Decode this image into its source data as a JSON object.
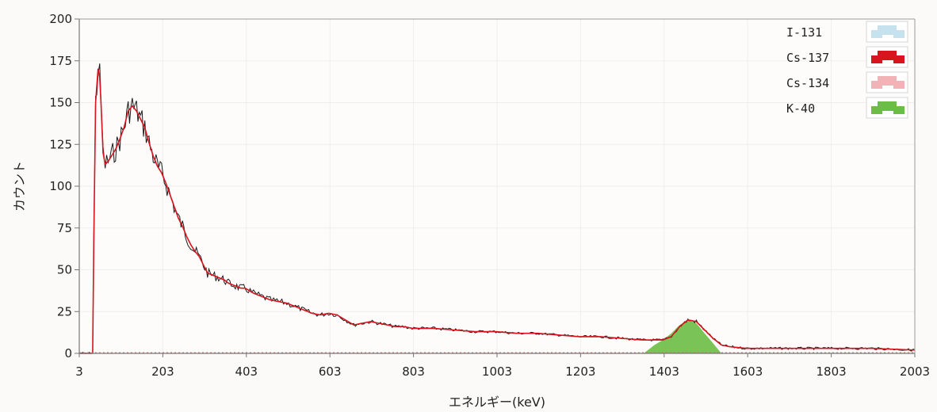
{
  "chart_data": {
    "type": "line",
    "title": "",
    "xlabel": "エネルギー(keV)",
    "ylabel": "カウント",
    "xlim": [
      3,
      2003
    ],
    "ylim": [
      0,
      200
    ],
    "x_ticks": [
      3,
      203,
      403,
      603,
      803,
      1003,
      1203,
      1403,
      1603,
      1803,
      2003
    ],
    "y_ticks": [
      0,
      25,
      50,
      75,
      100,
      125,
      150,
      175,
      200
    ],
    "grid": true,
    "legend_position": "top-right",
    "series": [
      {
        "name": "I-131",
        "color": "#c6e2ee",
        "values": []
      },
      {
        "name": "Cs-137",
        "color": "#d8141e",
        "x": [
          3,
          35,
          38,
          42,
          48,
          52,
          55,
          60,
          65,
          72,
          80,
          90,
          100,
          110,
          120,
          130,
          140,
          150,
          160,
          170,
          180,
          190,
          200,
          210,
          220,
          230,
          240,
          250,
          260,
          270,
          280,
          290,
          300,
          310,
          320,
          330,
          340,
          350,
          360,
          370,
          380,
          390,
          400,
          420,
          440,
          460,
          480,
          500,
          520,
          540,
          560,
          580,
          600,
          620,
          640,
          660,
          680,
          700,
          720,
          740,
          760,
          780,
          800,
          850,
          900,
          950,
          1000,
          1050,
          1100,
          1150,
          1200,
          1250,
          1300,
          1350,
          1400,
          1420,
          1440,
          1460,
          1480,
          1500,
          1520,
          1540,
          1560,
          1600,
          1700,
          1800,
          1900,
          2003
        ],
        "values": [
          0,
          0,
          70,
          150,
          170,
          165,
          150,
          120,
          113,
          115,
          118,
          122,
          128,
          135,
          145,
          148,
          145,
          140,
          135,
          126,
          118,
          112,
          108,
          102,
          95,
          88,
          81,
          76,
          70,
          65,
          61,
          58,
          53,
          48,
          47,
          46,
          45,
          44,
          42,
          41,
          40,
          39,
          39,
          36,
          34,
          32,
          31,
          30,
          28,
          26,
          24,
          23,
          24,
          23,
          20,
          17,
          18,
          19,
          18,
          17,
          16,
          16,
          15,
          15,
          14,
          13,
          13,
          12,
          12,
          11,
          10,
          10,
          9,
          8,
          8,
          10,
          16,
          20,
          19,
          14,
          9,
          5,
          4,
          3,
          3,
          3,
          3,
          2
        ]
      },
      {
        "name": "Cs-134",
        "color": "#f2b2b6",
        "values": []
      },
      {
        "name": "K-40",
        "color": "#6cbd45",
        "x": [
          1354,
          1380,
          1400,
          1420,
          1440,
          1460,
          1480,
          1500,
          1520,
          1540
        ],
        "values": [
          0,
          5,
          8,
          12,
          17,
          20,
          18,
          12,
          6,
          0
        ]
      }
    ]
  }
}
